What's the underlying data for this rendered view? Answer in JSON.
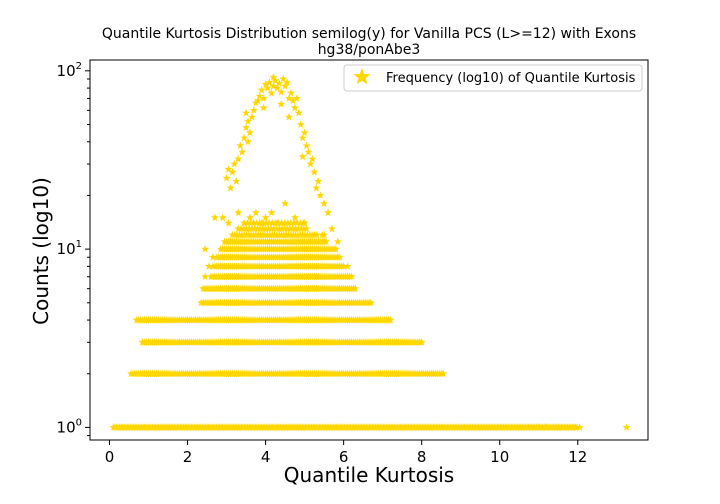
{
  "chart_data": {
    "type": "scatter",
    "title": "Quantile Kurtosis Distribution semilog(y) for Vanilla PCS (L>=12) with Exons",
    "subtitle": "hg38/ponAbe3",
    "xlabel": "Quantile Kurtosis",
    "ylabel": "Counts (log10)",
    "xlim": [
      -0.5,
      13.8
    ],
    "ylim": [
      0.85,
      115
    ],
    "yscale": "log",
    "xticks": [
      0,
      2,
      4,
      6,
      8,
      10,
      12
    ],
    "xtick_labels": [
      "0",
      "2",
      "4",
      "6",
      "8",
      "10",
      "12"
    ],
    "yticks": [
      1,
      10,
      100
    ],
    "grid": false,
    "legend_position": "top-right",
    "marker": "star",
    "color": "#FFD700",
    "series": [
      {
        "name": "Frequency (log10) of Quantile Kurtosis",
        "bands": [
          {
            "y": 1,
            "x_from": 0.1,
            "x_to": 12.0,
            "step": 0.04
          },
          {
            "y": 2,
            "x_from": 0.55,
            "x_to": 8.55,
            "step": 0.05
          },
          {
            "y": 3,
            "x_from": 0.85,
            "x_to": 8.0,
            "step": 0.05
          },
          {
            "y": 4,
            "x_from": 0.7,
            "x_to": 7.2,
            "step": 0.05
          },
          {
            "y": 5,
            "x_from": 2.35,
            "x_to": 6.7,
            "step": 0.05
          },
          {
            "y": 6,
            "x_from": 2.4,
            "x_to": 6.3,
            "step": 0.05
          },
          {
            "y": 7,
            "x_from": 2.6,
            "x_to": 6.2,
            "step": 0.05
          },
          {
            "y": 8,
            "x_from": 2.65,
            "x_to": 6.0,
            "step": 0.05
          },
          {
            "y": 9,
            "x_from": 2.75,
            "x_to": 5.9,
            "step": 0.05
          },
          {
            "y": 10,
            "x_from": 2.85,
            "x_to": 5.8,
            "step": 0.05
          },
          {
            "y": 11,
            "x_from": 2.95,
            "x_to": 5.5,
            "step": 0.05
          },
          {
            "y": 12,
            "x_from": 3.15,
            "x_to": 5.35,
            "step": 0.06
          },
          {
            "y": 13,
            "x_from": 3.3,
            "x_to": 5.1,
            "step": 0.07
          },
          {
            "y": 14,
            "x_from": 3.45,
            "x_to": 5.0,
            "step": 0.08
          }
        ],
        "points": [
          {
            "x": 0.85,
            "y": 3
          },
          {
            "x": 1.0,
            "y": 3
          },
          {
            "x": 1.15,
            "y": 3
          },
          {
            "x": 1.4,
            "y": 3
          },
          {
            "x": 1.8,
            "y": 3
          },
          {
            "x": 0.7,
            "y": 4
          },
          {
            "x": 0.9,
            "y": 4
          },
          {
            "x": 2.0,
            "y": 4
          },
          {
            "x": 2.3,
            "y": 4
          },
          {
            "x": 7.55,
            "y": 3
          },
          {
            "x": 8.0,
            "y": 3
          },
          {
            "x": 1.1,
            "y": 2
          },
          {
            "x": 1.2,
            "y": 2
          },
          {
            "x": 1.5,
            "y": 2
          },
          {
            "x": 8.3,
            "y": 2
          },
          {
            "x": 8.55,
            "y": 2
          },
          {
            "x": 2.45,
            "y": 10
          },
          {
            "x": 2.55,
            "y": 8
          },
          {
            "x": 2.45,
            "y": 7
          },
          {
            "x": 2.5,
            "y": 6
          },
          {
            "x": 2.65,
            "y": 9
          },
          {
            "x": 6.25,
            "y": 6
          },
          {
            "x": 6.1,
            "y": 8
          },
          {
            "x": 5.85,
            "y": 9
          },
          {
            "x": 5.75,
            "y": 10
          },
          {
            "x": 5.55,
            "y": 11
          },
          {
            "x": 5.45,
            "y": 12
          },
          {
            "x": 2.7,
            "y": 15
          },
          {
            "x": 2.9,
            "y": 15
          },
          {
            "x": 3.05,
            "y": 14
          },
          {
            "x": 3.3,
            "y": 16
          },
          {
            "x": 3.6,
            "y": 15
          },
          {
            "x": 4.0,
            "y": 15
          },
          {
            "x": 4.15,
            "y": 16
          },
          {
            "x": 4.5,
            "y": 18
          },
          {
            "x": 4.75,
            "y": 15
          },
          {
            "x": 5.0,
            "y": 14
          },
          {
            "x": 5.5,
            "y": 12
          },
          {
            "x": 3.9,
            "y": 14
          },
          {
            "x": 3.75,
            "y": 16
          },
          {
            "x": 4.3,
            "y": 14
          },
          {
            "x": 12.05,
            "y": 1
          },
          {
            "x": 11.5,
            "y": 1
          },
          {
            "x": 11.2,
            "y": 1
          },
          {
            "x": 11.0,
            "y": 1
          },
          {
            "x": 13.25,
            "y": 1
          },
          {
            "x": 3.0,
            "y": 25
          },
          {
            "x": 3.05,
            "y": 28
          },
          {
            "x": 3.15,
            "y": 27
          },
          {
            "x": 3.2,
            "y": 30
          },
          {
            "x": 3.25,
            "y": 24
          },
          {
            "x": 3.3,
            "y": 32
          },
          {
            "x": 3.4,
            "y": 35
          },
          {
            "x": 3.45,
            "y": 42
          },
          {
            "x": 3.5,
            "y": 48
          },
          {
            "x": 3.55,
            "y": 52
          },
          {
            "x": 3.6,
            "y": 45
          },
          {
            "x": 3.65,
            "y": 55
          },
          {
            "x": 3.7,
            "y": 60
          },
          {
            "x": 3.75,
            "y": 66
          },
          {
            "x": 3.8,
            "y": 68
          },
          {
            "x": 3.85,
            "y": 72
          },
          {
            "x": 3.9,
            "y": 78
          },
          {
            "x": 3.95,
            "y": 70
          },
          {
            "x": 4.0,
            "y": 84
          },
          {
            "x": 4.05,
            "y": 80
          },
          {
            "x": 4.1,
            "y": 86
          },
          {
            "x": 4.15,
            "y": 75
          },
          {
            "x": 4.2,
            "y": 82
          },
          {
            "x": 4.25,
            "y": 88
          },
          {
            "x": 4.3,
            "y": 80
          },
          {
            "x": 4.35,
            "y": 85
          },
          {
            "x": 4.4,
            "y": 76
          },
          {
            "x": 4.45,
            "y": 90
          },
          {
            "x": 4.5,
            "y": 82
          },
          {
            "x": 4.55,
            "y": 86
          },
          {
            "x": 4.6,
            "y": 70
          },
          {
            "x": 4.65,
            "y": 75
          },
          {
            "x": 4.7,
            "y": 68
          },
          {
            "x": 4.75,
            "y": 62
          },
          {
            "x": 4.8,
            "y": 70
          },
          {
            "x": 4.85,
            "y": 58
          },
          {
            "x": 4.9,
            "y": 50
          },
          {
            "x": 4.95,
            "y": 42
          },
          {
            "x": 5.0,
            "y": 45
          },
          {
            "x": 5.05,
            "y": 38
          },
          {
            "x": 5.1,
            "y": 35
          },
          {
            "x": 5.15,
            "y": 30
          },
          {
            "x": 5.2,
            "y": 32
          },
          {
            "x": 5.25,
            "y": 27
          },
          {
            "x": 5.3,
            "y": 22
          },
          {
            "x": 5.4,
            "y": 20
          },
          {
            "x": 5.5,
            "y": 18
          },
          {
            "x": 5.6,
            "y": 16
          },
          {
            "x": 5.7,
            "y": 13
          },
          {
            "x": 5.85,
            "y": 11
          },
          {
            "x": 3.5,
            "y": 58
          },
          {
            "x": 3.95,
            "y": 62
          },
          {
            "x": 4.4,
            "y": 65
          },
          {
            "x": 4.2,
            "y": 92
          },
          {
            "x": 3.55,
            "y": 40
          },
          {
            "x": 3.1,
            "y": 22
          },
          {
            "x": 3.35,
            "y": 38
          },
          {
            "x": 4.6,
            "y": 55
          },
          {
            "x": 4.95,
            "y": 33
          },
          {
            "x": 5.35,
            "y": 24
          }
        ]
      }
    ]
  }
}
